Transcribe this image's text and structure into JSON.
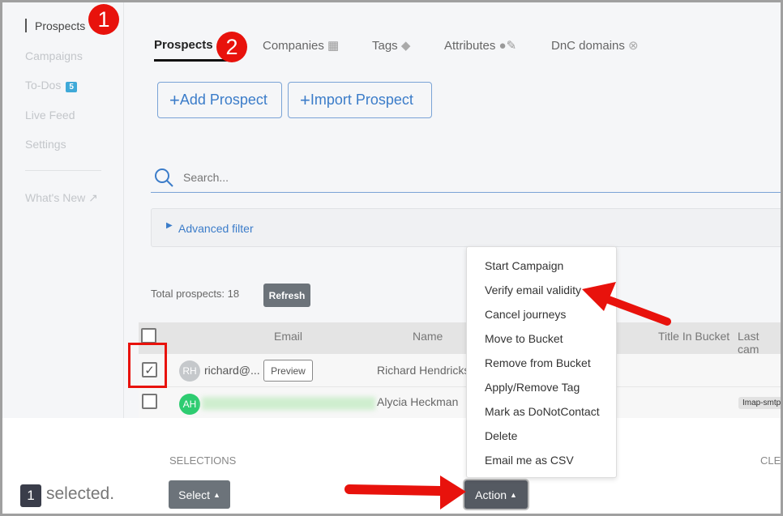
{
  "sidebar": {
    "items": [
      {
        "label": "Prospects"
      },
      {
        "label": "Campaigns"
      },
      {
        "label": "To-Dos",
        "badge": "5"
      },
      {
        "label": "Live Feed"
      },
      {
        "label": "Settings"
      },
      {
        "label": "What's New"
      }
    ]
  },
  "annotations": {
    "step1": "1",
    "step2": "2"
  },
  "tabs": [
    {
      "label": "Prospects"
    },
    {
      "label": "Companies"
    },
    {
      "label": "Tags"
    },
    {
      "label": "Attributes"
    },
    {
      "label": "DnC domains"
    }
  ],
  "buttons": {
    "add": "Add Prospect",
    "import": "Import Prospect",
    "refresh": "Refresh"
  },
  "search": {
    "placeholder": "Search..."
  },
  "filter": {
    "label": "Advanced filter"
  },
  "total": "Total prospects: 18",
  "table": {
    "headers": [
      "Email",
      "Name",
      "Title In Bucket",
      "Last cam"
    ],
    "rows": [
      {
        "initials": "RH",
        "email": "richard@...",
        "preview": "Preview",
        "name": "Richard Hendricks",
        "checked": true
      },
      {
        "initials": "AH",
        "email": "",
        "name": "Alycia Heckman",
        "tag": "Imap-smtp",
        "checked": false
      }
    ]
  },
  "menu": [
    "Start Campaign",
    "Verify email validity",
    "Cancel journeys",
    "Move to Bucket",
    "Remove from Bucket",
    "Apply/Remove Tag",
    "Mark as DoNotContact",
    "Delete",
    "Email me as CSV"
  ],
  "bottom": {
    "count": "1",
    "selected": "selected.",
    "selections": "SELECTIONS",
    "select": "Select",
    "action": "Action",
    "clear": "CLE"
  },
  "colors": {
    "accent": "#3b7cc9",
    "annotation": "#e8120c"
  }
}
